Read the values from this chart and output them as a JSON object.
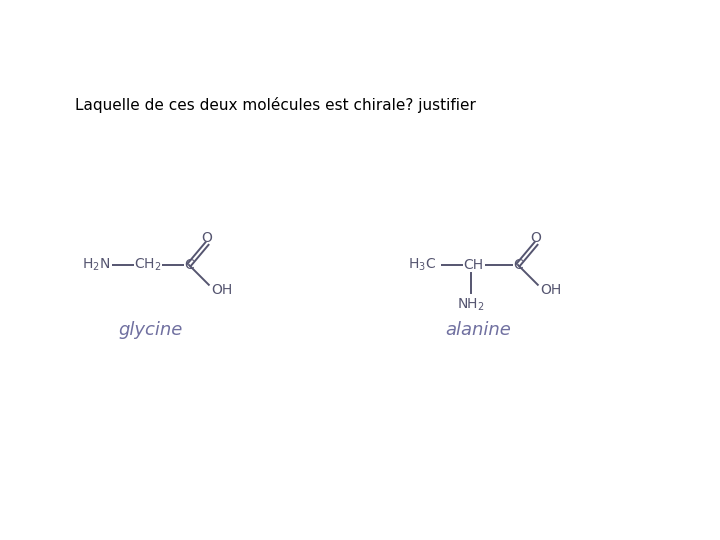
{
  "title_text": "Laquelle de ces deux molécules est chirale? justifier",
  "title_color": "#000000",
  "background_color": "#ffffff",
  "glycine_label": "glycine",
  "alanine_label": "alanine",
  "atom_color": "#555570",
  "bond_color": "#555570",
  "label_color": "#7070a0",
  "figsize": [
    7.2,
    5.4
  ],
  "dpi": 100
}
